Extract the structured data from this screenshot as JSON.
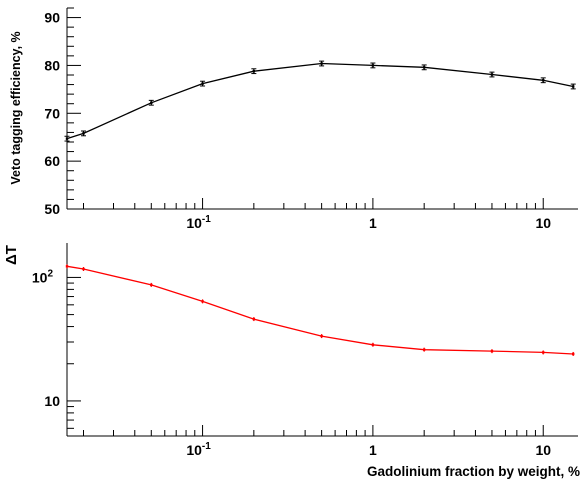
{
  "chart_data": [
    {
      "type": "line",
      "title": "",
      "xlabel": "",
      "ylabel": "Veto tagging efficiency, %",
      "xscale": "log",
      "yscale": "linear",
      "xlim": [
        0.016,
        16
      ],
      "ylim": [
        50,
        92
      ],
      "yticks": [
        50,
        60,
        70,
        80,
        90
      ],
      "xtick_labels": [
        {
          "base": "10",
          "exp": "-1",
          "value": 0.1
        },
        {
          "text": "1",
          "value": 1
        },
        {
          "text": "10",
          "value": 10
        }
      ],
      "grid": false,
      "series": [
        {
          "color": "#000000",
          "x": [
            0.016,
            0.02,
            0.05,
            0.1,
            0.2,
            0.5,
            1,
            2,
            5,
            10,
            15
          ],
          "y": [
            64.7,
            65.8,
            72.2,
            76.2,
            78.8,
            80.4,
            80.0,
            79.6,
            78.1,
            76.9,
            75.6
          ],
          "yerr": [
            0.5,
            0.5,
            0.5,
            0.5,
            0.5,
            0.5,
            0.5,
            0.5,
            0.5,
            0.5,
            0.5
          ]
        }
      ]
    },
    {
      "type": "line",
      "title": "",
      "xlabel": "Gadolinium fraction by weight, %",
      "ylabel": "ΔT",
      "xscale": "log",
      "yscale": "log",
      "xlim": [
        0.016,
        16
      ],
      "ylim": [
        5.2,
        190
      ],
      "ytick_labels": [
        {
          "text": "10",
          "value": 10
        },
        {
          "base": "10",
          "exp": "2",
          "value": 100
        }
      ],
      "xtick_labels": [
        {
          "base": "10",
          "exp": "-1",
          "value": 0.1
        },
        {
          "text": "1",
          "value": 1
        },
        {
          "text": "10",
          "value": 10
        }
      ],
      "grid": false,
      "series": [
        {
          "color": "#ff0000",
          "x": [
            0.016,
            0.02,
            0.05,
            0.1,
            0.2,
            0.5,
            1,
            2,
            5,
            10,
            15
          ],
          "y": [
            123,
            117,
            87,
            64,
            46,
            33.5,
            28.5,
            26,
            25.3,
            24.7,
            24
          ]
        }
      ]
    }
  ]
}
